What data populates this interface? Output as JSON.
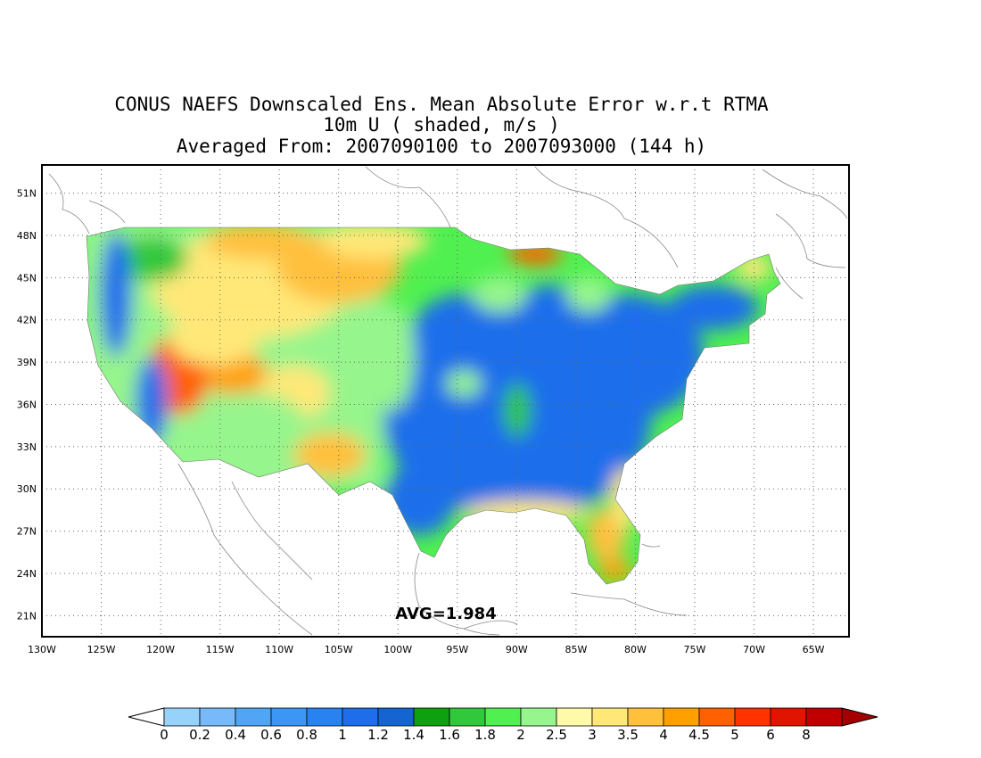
{
  "title": {
    "line1": "CONUS NAEFS Downscaled Ens. Mean Absolute Error w.r.t RTMA",
    "line2": "10m U ( shaded, m/s )",
    "line3": "Averaged From: 2007090100 to 2007093000 (144 h)"
  },
  "map": {
    "lat_labels": [
      "51N",
      "48N",
      "45N",
      "42N",
      "39N",
      "36N",
      "33N",
      "30N",
      "27N",
      "24N",
      "21N"
    ],
    "lon_labels": [
      "130W",
      "125W",
      "120W",
      "115W",
      "110W",
      "105W",
      "100W",
      "95W",
      "90W",
      "85W",
      "80W",
      "75W",
      "70W",
      "65W"
    ],
    "lat_range": [
      19.5,
      53
    ],
    "lon_range": [
      -130,
      -62
    ],
    "grid": "dotted",
    "avg_label": "AVG=1.984"
  },
  "legend": {
    "labels": [
      "0",
      "0.2",
      "0.4",
      "0.6",
      "0.8",
      "1",
      "1.2",
      "1.4",
      "1.6",
      "1.8",
      "2",
      "2.5",
      "3",
      "3.5",
      "4",
      "4.5",
      "5",
      "6",
      "8"
    ],
    "colors": [
      "#96d2fa",
      "#78b9fa",
      "#50a5f5",
      "#3c96f5",
      "#2882f0",
      "#1e6eeb",
      "#1464d2",
      "#0fa00f",
      "#32c83c",
      "#50f050",
      "#96f58c",
      "#fffaaa",
      "#ffe878",
      "#ffc03c",
      "#ffa000",
      "#ff6000",
      "#ff3200",
      "#e11400",
      "#c00000"
    ],
    "under_color": "#ffffff",
    "over_color": "#a50000"
  }
}
